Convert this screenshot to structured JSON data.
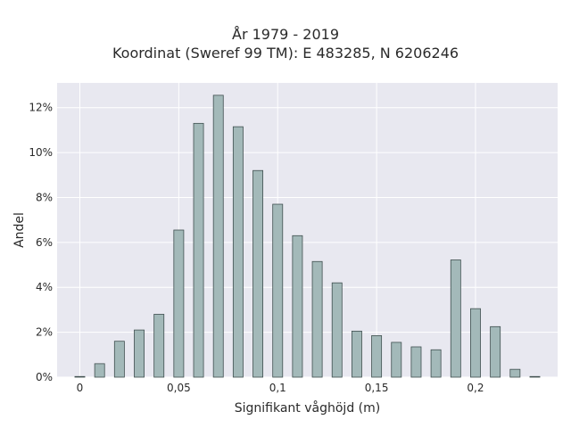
{
  "chart_data": {
    "type": "bar",
    "title_lines": [
      "År 1979 - 2019",
      "Koordinat (Sweref 99 TM): E 483285, N 6206246"
    ],
    "xlabel": "Signifikant våghöjd (m)",
    "ylabel": "Andel",
    "x_ticks": [
      {
        "value": 0,
        "label": "0"
      },
      {
        "value": 0.05,
        "label": "0,05"
      },
      {
        "value": 0.1,
        "label": "0,1"
      },
      {
        "value": 0.15,
        "label": "0,15"
      },
      {
        "value": 0.2,
        "label": "0,2"
      }
    ],
    "y_ticks": [
      {
        "value": 0,
        "label": "0%"
      },
      {
        "value": 2,
        "label": "2%"
      },
      {
        "value": 4,
        "label": "4%"
      },
      {
        "value": 6,
        "label": "6%"
      },
      {
        "value": 8,
        "label": "8%"
      },
      {
        "value": 10,
        "label": "10%"
      },
      {
        "value": 12,
        "label": "12%"
      }
    ],
    "xlim": [
      -0.0115,
      0.2415
    ],
    "ylim": [
      0,
      13.1
    ],
    "bar_width": 0.005,
    "grid": true,
    "background_color": "#e8e8f0",
    "bar_color": "#a3b9b9",
    "bar_edge_color": "#3f4f4f",
    "x": [
      0.0,
      0.01,
      0.02,
      0.03,
      0.04,
      0.05,
      0.06,
      0.07,
      0.08,
      0.09,
      0.1,
      0.11,
      0.12,
      0.13,
      0.14,
      0.15,
      0.16,
      0.17,
      0.18,
      0.19,
      0.2,
      0.21,
      0.22,
      0.23
    ],
    "values": [
      0.03,
      0.6,
      1.6,
      2.1,
      2.8,
      6.55,
      11.3,
      12.55,
      11.15,
      9.2,
      7.7,
      6.3,
      5.15,
      4.2,
      2.05,
      1.85,
      1.55,
      1.35,
      1.22,
      5.22,
      3.05,
      2.25,
      0.35,
      0.03
    ]
  }
}
